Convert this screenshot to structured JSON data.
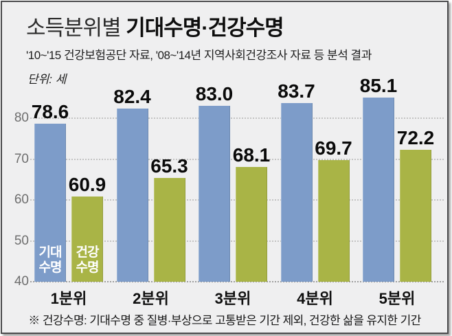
{
  "header": {
    "title_light": "소득분위별 ",
    "title_bold": "기대수명·건강수명",
    "subtitle": "'10~'15 건강보험공단 자료, '08~'14년 지역사회건강조사 자료 등 분석 결과",
    "unit_label": "단위: 세"
  },
  "chart_data": {
    "type": "bar",
    "title": "소득분위별 기대수명·건강수명",
    "categories": [
      "1분위",
      "2분위",
      "3분위",
      "4분위",
      "5분위"
    ],
    "series": [
      {
        "name": "기대수명",
        "color": "#7d9cc9",
        "values": [
          78.6,
          82.4,
          83.0,
          83.7,
          85.1
        ]
      },
      {
        "name": "건강수명",
        "color": "#a9b446",
        "values": [
          60.9,
          65.3,
          68.1,
          69.7,
          72.2
        ]
      }
    ],
    "legend_labels": [
      "기대\n수명",
      "건강\n수명"
    ],
    "legend_position": "inside-first-bars",
    "ylabel": "세",
    "y_ticks": [
      40,
      50,
      60,
      70,
      80
    ],
    "ylim": [
      40,
      88
    ],
    "grid": "dotted-horizontal"
  },
  "footnote": "※ 건강수명: 기대수명 중 질병·부상으로 고통받은 기간 제외, 건강한 삶을 유지한 기간"
}
